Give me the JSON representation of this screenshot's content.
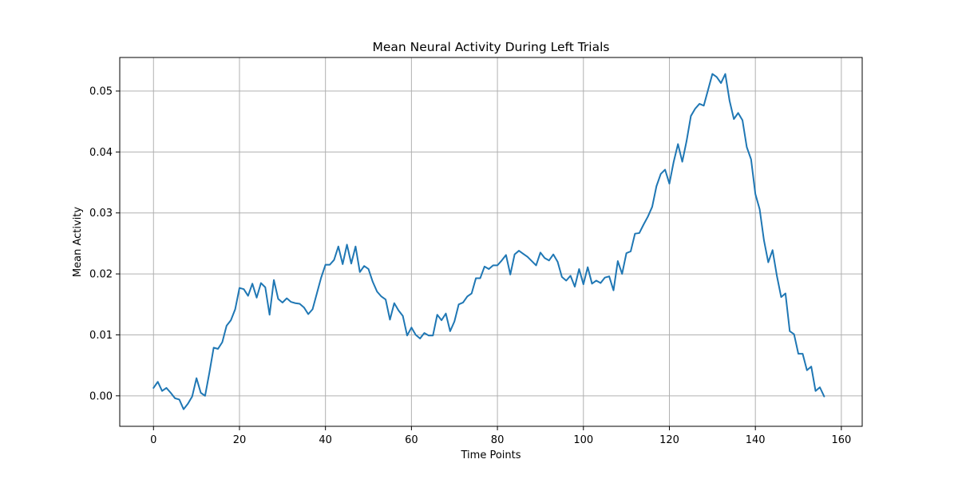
{
  "chart_data": {
    "type": "line",
    "title": "Mean Neural Activity During Left Trials",
    "xlabel": "Time Points",
    "ylabel": "Mean Activity",
    "xlim": [
      -7.85,
      164.85
    ],
    "ylim": [
      -0.005,
      0.0555
    ],
    "xticks": [
      0,
      20,
      40,
      60,
      80,
      100,
      120,
      140,
      160
    ],
    "yticks": [
      0.0,
      0.01,
      0.02,
      0.03,
      0.04,
      0.05
    ],
    "xtick_labels": [
      "0",
      "20",
      "40",
      "60",
      "80",
      "100",
      "120",
      "140",
      "160"
    ],
    "ytick_labels": [
      "0.00",
      "0.01",
      "0.02",
      "0.03",
      "0.04",
      "0.05"
    ],
    "grid": true,
    "line_color": "#1f77b4",
    "grid_color": "#b0b0b0",
    "series": [
      {
        "values": [
          0.0013,
          0.0023,
          0.0008,
          0.0013,
          0.0005,
          -0.0004,
          -0.0006,
          -0.0022,
          -0.0013,
          -0.0001,
          0.0029,
          0.0005,
          0.0,
          0.0038,
          0.0079,
          0.0077,
          0.0088,
          0.0115,
          0.0124,
          0.0142,
          0.0177,
          0.0175,
          0.0164,
          0.0184,
          0.0161,
          0.0185,
          0.0178,
          0.0133,
          0.019,
          0.0159,
          0.0153,
          0.016,
          0.0154,
          0.0152,
          0.0151,
          0.0145,
          0.0134,
          0.0142,
          0.0168,
          0.0194,
          0.0215,
          0.0215,
          0.0223,
          0.0245,
          0.0216,
          0.0248,
          0.0217,
          0.0245,
          0.0203,
          0.0213,
          0.0208,
          0.0187,
          0.0171,
          0.0163,
          0.0158,
          0.0125,
          0.0152,
          0.014,
          0.0131,
          0.0099,
          0.0112,
          0.01,
          0.0094,
          0.0103,
          0.0099,
          0.0099,
          0.0133,
          0.0124,
          0.0135,
          0.0106,
          0.0122,
          0.015,
          0.0153,
          0.0163,
          0.0168,
          0.0193,
          0.0193,
          0.0212,
          0.0208,
          0.0214,
          0.0214,
          0.0222,
          0.0231,
          0.0199,
          0.0232,
          0.0238,
          0.0233,
          0.0228,
          0.0221,
          0.0214,
          0.0235,
          0.0226,
          0.0222,
          0.0232,
          0.022,
          0.0195,
          0.0189,
          0.0197,
          0.0179,
          0.0208,
          0.0183,
          0.0211,
          0.0184,
          0.0189,
          0.0185,
          0.0194,
          0.0196,
          0.0173,
          0.0221,
          0.02,
          0.0234,
          0.0237,
          0.0266,
          0.0267,
          0.0281,
          0.0294,
          0.031,
          0.0344,
          0.0364,
          0.0371,
          0.0348,
          0.0384,
          0.0413,
          0.0384,
          0.0418,
          0.0459,
          0.0471,
          0.0479,
          0.0476,
          0.0502,
          0.0528,
          0.0523,
          0.0513,
          0.0528,
          0.0484,
          0.0454,
          0.0464,
          0.0452,
          0.0408,
          0.0388,
          0.0331,
          0.0306,
          0.0255,
          0.0219,
          0.0239,
          0.0197,
          0.0162,
          0.0168,
          0.0106,
          0.0101,
          0.0069,
          0.0069,
          0.0042,
          0.0048,
          0.0008,
          0.0014,
          -0.0001
        ]
      }
    ]
  }
}
